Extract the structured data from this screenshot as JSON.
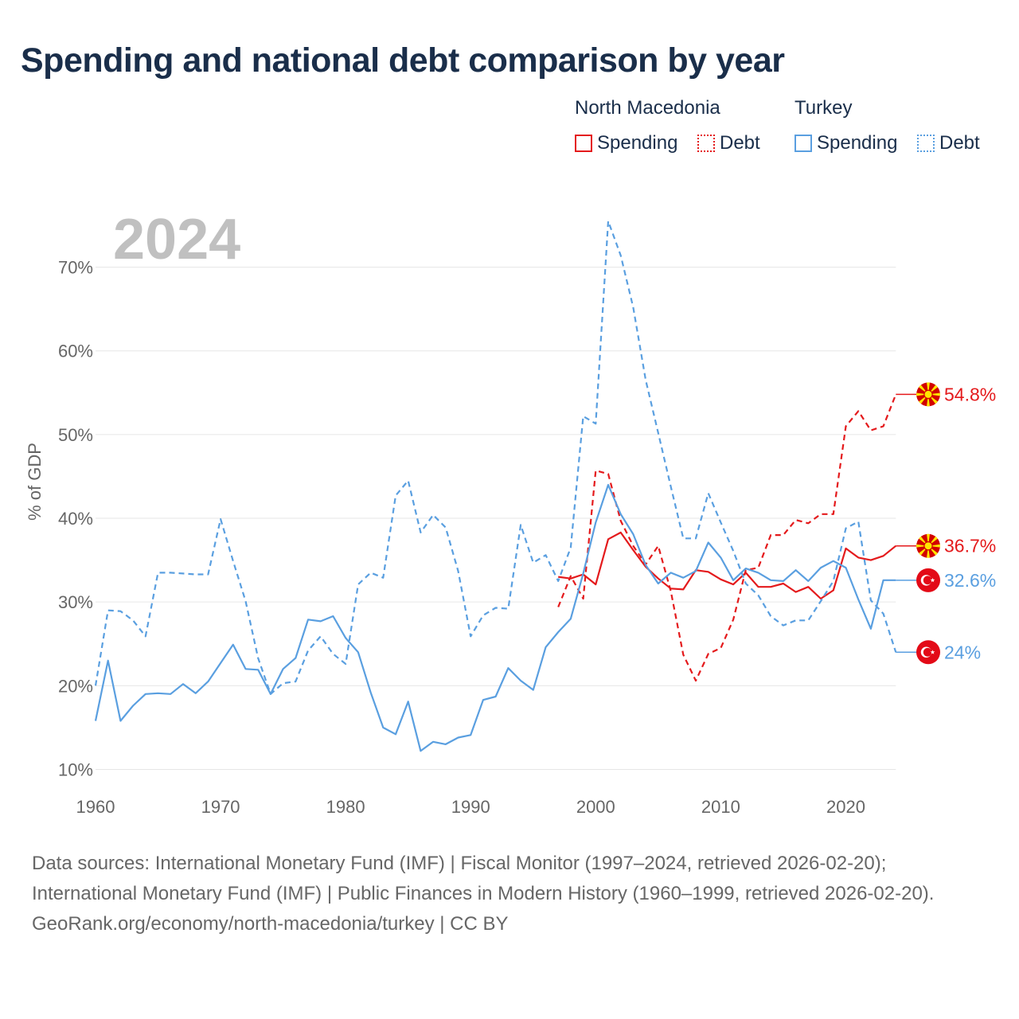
{
  "title": "Spending and national debt comparison by year",
  "legend": {
    "groups": [
      {
        "country": "North Macedonia",
        "spending_label": "Spending",
        "debt_label": "Debt",
        "color": "#e41a1c"
      },
      {
        "country": "Turkey",
        "spending_label": "Spending",
        "debt_label": "Debt",
        "color": "#5a9fe0"
      }
    ]
  },
  "footer": {
    "sources": "Data sources: International Monetary Fund (IMF) | Fiscal Monitor (1997–2024, retrieved 2026-02-20); International Monetary Fund (IMF) | Public Finances in Modern History (1960–1999, retrieved 2026-02-20).",
    "credit": "GeoRank.org/economy/north-macedonia/turkey | CC BY"
  },
  "chart_data": {
    "type": "line",
    "title": "Spending and national debt comparison by year",
    "year_label": "2024",
    "ylabel": "% of GDP",
    "xlabel": "",
    "xlim": [
      1960,
      2025
    ],
    "ylim": [
      7,
      77
    ],
    "x_ticks": [
      1960,
      1970,
      1980,
      1990,
      2000,
      2010,
      2020
    ],
    "y_ticks": [
      10,
      20,
      30,
      40,
      50,
      60,
      70
    ],
    "y_tick_labels": [
      "10%",
      "20%",
      "30%",
      "40%",
      "50%",
      "60%",
      "70%"
    ],
    "series": [
      {
        "name": "North Macedonia Spending",
        "country": "North Macedonia",
        "metric": "Spending",
        "color": "#e41a1c",
        "dashed": false,
        "end_label": "36.7%",
        "end_flag": "north-macedonia",
        "x": [
          1997,
          1998,
          1999,
          2000,
          2001,
          2002,
          2003,
          2004,
          2005,
          2006,
          2007,
          2008,
          2009,
          2010,
          2011,
          2012,
          2013,
          2014,
          2015,
          2016,
          2017,
          2018,
          2019,
          2020,
          2021,
          2022,
          2023,
          2024
        ],
        "values": [
          33,
          32.8,
          33.3,
          32.1,
          37.5,
          38.3,
          36.2,
          34.2,
          32.8,
          31.6,
          31.5,
          33.8,
          33.6,
          32.7,
          32.1,
          33.5,
          31.8,
          31.8,
          32.2,
          31.2,
          31.8,
          30.4,
          31.4,
          36.4,
          35.3,
          35,
          35.5,
          36.7
        ]
      },
      {
        "name": "North Macedonia Debt",
        "country": "North Macedonia",
        "metric": "Debt",
        "color": "#e41a1c",
        "dashed": true,
        "end_label": "54.8%",
        "end_flag": "north-macedonia",
        "x": [
          1997,
          1998,
          1999,
          2000,
          2001,
          2002,
          2003,
          2004,
          2005,
          2006,
          2007,
          2008,
          2009,
          2010,
          2011,
          2012,
          2013,
          2014,
          2015,
          2016,
          2017,
          2018,
          2019,
          2020,
          2021,
          2022,
          2023,
          2024
        ],
        "values": [
          29.4,
          33.1,
          30.4,
          45.7,
          45.3,
          39.7,
          36.7,
          34.5,
          36.7,
          31.3,
          23.7,
          20.6,
          23.8,
          24.5,
          27.9,
          33.8,
          34.1,
          38,
          38,
          39.8,
          39.4,
          40.5,
          40.5,
          51,
          52.8,
          50.5,
          51,
          54.8
        ]
      },
      {
        "name": "Turkey Spending",
        "country": "Turkey",
        "metric": "Spending",
        "color": "#5a9fe0",
        "dashed": false,
        "end_label": "32.6%",
        "end_flag": "turkey",
        "x": [
          1960,
          1961,
          1962,
          1963,
          1964,
          1965,
          1966,
          1967,
          1968,
          1969,
          1970,
          1971,
          1972,
          1973,
          1974,
          1975,
          1976,
          1977,
          1978,
          1979,
          1980,
          1981,
          1982,
          1983,
          1984,
          1985,
          1986,
          1987,
          1988,
          1989,
          1990,
          1991,
          1992,
          1993,
          1994,
          1995,
          1996,
          1997,
          1998,
          1999,
          2000,
          2001,
          2002,
          2003,
          2004,
          2005,
          2006,
          2007,
          2008,
          2009,
          2010,
          2011,
          2012,
          2013,
          2014,
          2015,
          2016,
          2017,
          2018,
          2019,
          2020,
          2021,
          2022,
          2023,
          2024
        ],
        "values": [
          15.8,
          23,
          15.8,
          17.6,
          19,
          19.1,
          19,
          20.2,
          19.1,
          20.5,
          22.7,
          24.9,
          22,
          21.9,
          19,
          22,
          23.3,
          27.9,
          27.7,
          28.3,
          25.7,
          24,
          19.2,
          15,
          14.2,
          18.1,
          12.2,
          13.3,
          13,
          13.8,
          14.1,
          18.3,
          18.7,
          22.1,
          20.6,
          19.5,
          24.6,
          26.4,
          28,
          33.4,
          39.5,
          44,
          40.5,
          38.1,
          34.4,
          32.2,
          33.5,
          32.9,
          33.7,
          37.1,
          35.3,
          32.6,
          34,
          33.5,
          32.6,
          32.5,
          33.8,
          32.5,
          34.1,
          34.9,
          34.1,
          30.3,
          26.8,
          32.6,
          32.6
        ]
      },
      {
        "name": "Turkey Debt",
        "country": "Turkey",
        "metric": "Debt",
        "color": "#5a9fe0",
        "dashed": true,
        "end_label": "24%",
        "end_flag": "turkey",
        "x": [
          1960,
          1961,
          1962,
          1963,
          1964,
          1965,
          1966,
          1967,
          1968,
          1969,
          1970,
          1971,
          1972,
          1973,
          1974,
          1975,
          1976,
          1977,
          1978,
          1979,
          1980,
          1981,
          1982,
          1983,
          1984,
          1985,
          1986,
          1987,
          1988,
          1989,
          1990,
          1991,
          1992,
          1993,
          1994,
          1995,
          1996,
          1997,
          1998,
          1999,
          2000,
          2001,
          2002,
          2003,
          2004,
          2005,
          2006,
          2007,
          2008,
          2009,
          2010,
          2011,
          2012,
          2013,
          2014,
          2015,
          2016,
          2017,
          2018,
          2019,
          2020,
          2021,
          2022,
          2023,
          2024
        ],
        "values": [
          20,
          29,
          28.9,
          27.8,
          25.9,
          33.5,
          33.5,
          33.4,
          33.3,
          33.3,
          39.9,
          34.9,
          30.1,
          23.3,
          19,
          20.3,
          20.5,
          24.2,
          25.9,
          23.8,
          22.6,
          32.1,
          33.5,
          32.9,
          42.7,
          44.5,
          38.3,
          40.4,
          38.9,
          33.7,
          25.9,
          28.4,
          29.3,
          29.2,
          39.2,
          34.7,
          35.6,
          32.5,
          36.5,
          52.2,
          51.3,
          75.5,
          71.4,
          65.2,
          56.5,
          50.2,
          43.8,
          37.6,
          37.6,
          43,
          39.5,
          36.1,
          32.2,
          30.8,
          28.3,
          27.2,
          27.8,
          27.8,
          30.1,
          32.5,
          38.8,
          39.6,
          30.2,
          28.6,
          24
        ]
      }
    ]
  }
}
